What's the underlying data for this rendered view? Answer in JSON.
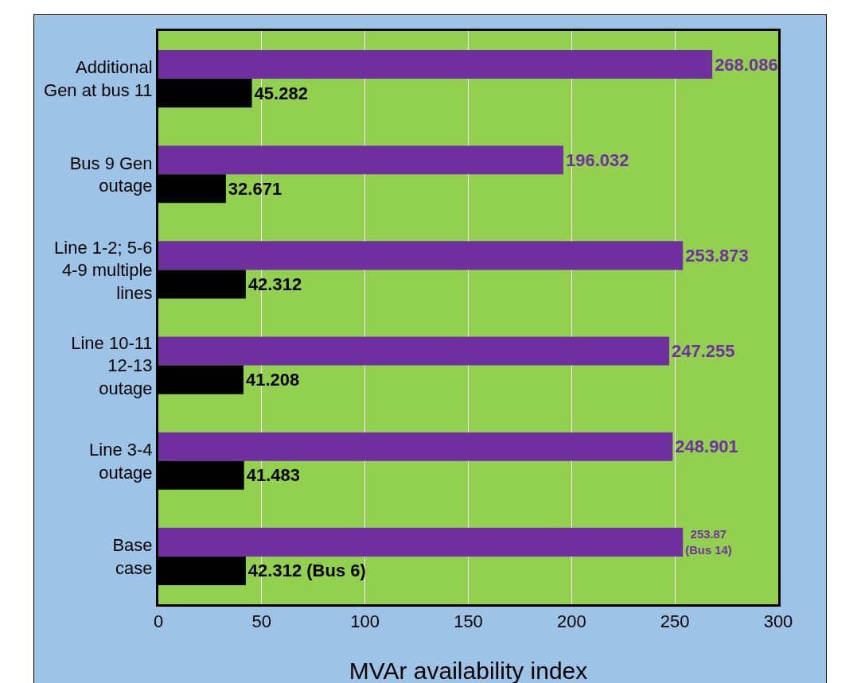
{
  "chart_data": {
    "type": "bar",
    "orientation": "horizontal",
    "xlabel": "MVAr availability index",
    "categories": [
      "Additional\nGen at bus 11",
      "Bus 9 Gen\noutage",
      "Line 1-2; 5-6\n4-9 multiple\nlines",
      "Line 10-11\n12-13\noutage",
      "Line 3-4\noutage",
      "Base\ncase"
    ],
    "series": [
      {
        "color": "#7030a0",
        "values": [
          268.086,
          196.032,
          253.873,
          247.255,
          248.901,
          253.87
        ],
        "value_labels": [
          "268.086",
          "196.032",
          "253.873",
          "247.255",
          "248.901",
          "253.87\n(Bus 14)"
        ]
      },
      {
        "color": "#000000",
        "values": [
          45.282,
          32.671,
          42.312,
          41.208,
          41.483,
          42.312
        ],
        "value_labels": [
          "45.282",
          "32.671",
          "42.312",
          "41.208",
          "41.483",
          "42.312 (Bus 6)"
        ]
      }
    ],
    "xlim": [
      0,
      300
    ],
    "xticks": [
      0,
      50,
      100,
      150,
      200,
      250,
      300
    ],
    "grid": "x"
  }
}
